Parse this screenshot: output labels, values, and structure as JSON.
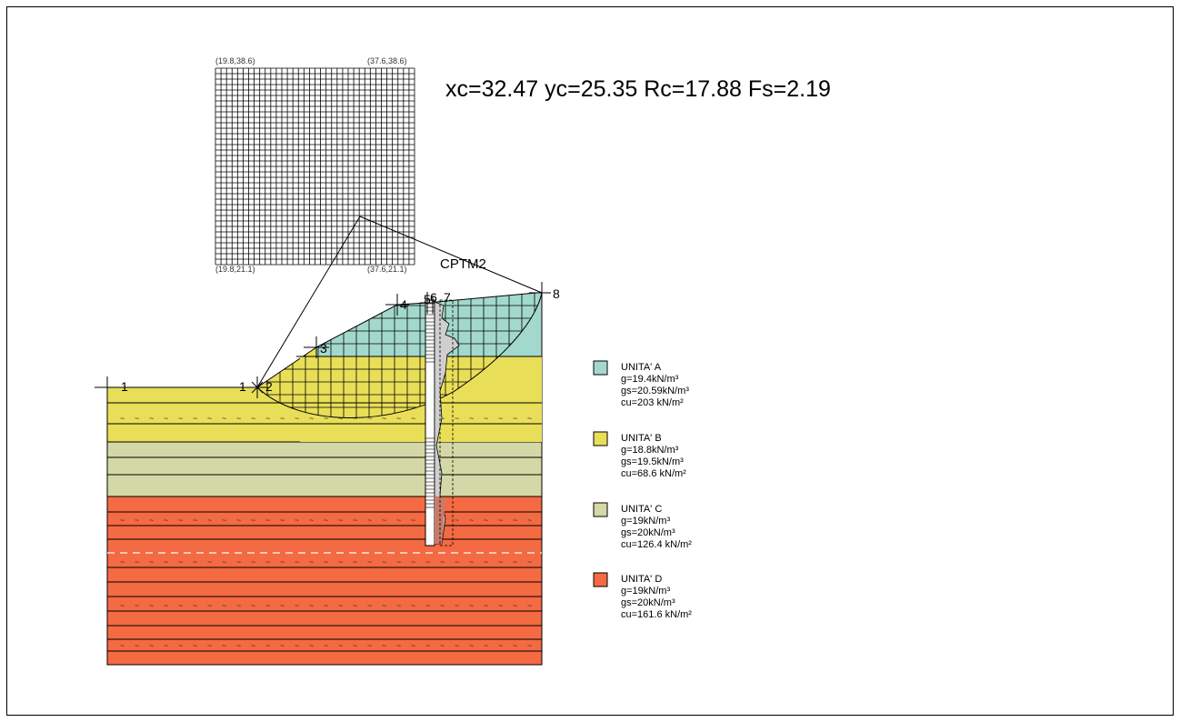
{
  "header_result": "xc=32.47 yc=25.35 Rc=17.88 Fs=2.19",
  "grid_corners": {
    "top_left": "(19.8,38.6)",
    "top_right": "(37.6,38.6)",
    "bottom_left": "(19.8,21.1)",
    "bottom_right": "(37.6,21.1)"
  },
  "cpt_label": "CPTM2",
  "points": [
    "1",
    "1",
    "2",
    "3",
    "4",
    "5",
    "6",
    "7",
    "8"
  ],
  "layers": [
    {
      "name": "UNITA' A",
      "g": "g=19.4kN/m³",
      "gs": "gs=20.59kN/m³",
      "cu": "cu=203 kN/m²",
      "color": "#a3d9cc"
    },
    {
      "name": "UNITA' B",
      "g": "g=18.8kN/m³",
      "gs": "gs=19.5kN/m³",
      "cu": "cu=68.6 kN/m²",
      "color": "#e8de58"
    },
    {
      "name": "UNITA' C",
      "g": "g=19kN/m³",
      "gs": "gs=20kN/m³",
      "cu": "cu=126.4 kN/m²",
      "color": "#d3d8a6"
    },
    {
      "name": "UNITA' D",
      "g": "g=19kN/m³",
      "gs": "gs=20kN/m³",
      "cu": "cu=161.6 kN/m²",
      "color": "#f46a42"
    }
  ]
}
